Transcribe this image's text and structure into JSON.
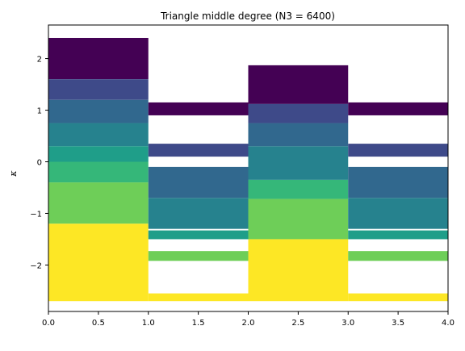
{
  "chart_data": {
    "type": "bar",
    "title": "Triangle middle degree (N3 = 6400)",
    "xlabel": "",
    "ylabel": "κ",
    "xlim": [
      0,
      4
    ],
    "ylim": [
      -2.9,
      2.65
    ],
    "xticks": [
      "0.0",
      "0.5",
      "1.0",
      "1.5",
      "2.0",
      "2.5",
      "3.0",
      "3.5",
      "4.0"
    ],
    "yticks": [
      -2,
      -1,
      0,
      1,
      2
    ],
    "ytick_labels": [
      "−2",
      "−1",
      "0",
      "1",
      "2"
    ],
    "grid": false,
    "colors": {
      "c1": "#440154",
      "c2": "#3e4a89",
      "c3": "#31688e",
      "c4": "#26828e",
      "c5": "#1f9e89",
      "c6": "#35b779",
      "c7": "#6ece58",
      "c8": "#fde725"
    },
    "segments": [
      {
        "x0": 0,
        "x1": 1,
        "y0": 1.6,
        "y1": 2.4,
        "color": "c1"
      },
      {
        "x0": 0,
        "x1": 1,
        "y0": 1.2,
        "y1": 1.6,
        "color": "c2"
      },
      {
        "x0": 0,
        "x1": 1,
        "y0": 0.75,
        "y1": 1.2,
        "color": "c3"
      },
      {
        "x0": 0,
        "x1": 1,
        "y0": 0.3,
        "y1": 0.75,
        "color": "c4"
      },
      {
        "x0": 0,
        "x1": 1,
        "y0": 0.0,
        "y1": 0.3,
        "color": "c5"
      },
      {
        "x0": 0,
        "x1": 1,
        "y0": -0.4,
        "y1": 0.0,
        "color": "c6"
      },
      {
        "x0": 0,
        "x1": 1,
        "y0": -1.2,
        "y1": -0.4,
        "color": "c7"
      },
      {
        "x0": 0,
        "x1": 1,
        "y0": -2.7,
        "y1": -1.2,
        "color": "c8"
      },
      {
        "x0": 1,
        "x1": 2,
        "y0": 0.9,
        "y1": 1.15,
        "color": "c1"
      },
      {
        "x0": 1,
        "x1": 2,
        "y0": 0.1,
        "y1": 0.35,
        "color": "c2"
      },
      {
        "x0": 1,
        "x1": 2,
        "y0": -0.7,
        "y1": -0.1,
        "color": "c3"
      },
      {
        "x0": 1,
        "x1": 2,
        "y0": -1.3,
        "y1": -0.7,
        "color": "c4"
      },
      {
        "x0": 1,
        "x1": 2,
        "y0": -1.5,
        "y1": -1.33,
        "color": "c5"
      },
      {
        "x0": 1,
        "x1": 2,
        "y0": -1.92,
        "y1": -1.73,
        "color": "c7"
      },
      {
        "x0": 1,
        "x1": 2,
        "y0": -2.7,
        "y1": -2.55,
        "color": "c8"
      },
      {
        "x0": 2,
        "x1": 3,
        "y0": 1.12,
        "y1": 1.87,
        "color": "c1"
      },
      {
        "x0": 2,
        "x1": 3,
        "y0": 0.75,
        "y1": 1.12,
        "color": "c2"
      },
      {
        "x0": 2,
        "x1": 3,
        "y0": 0.3,
        "y1": 0.75,
        "color": "c3"
      },
      {
        "x0": 2,
        "x1": 3,
        "y0": -0.35,
        "y1": 0.3,
        "color": "c4"
      },
      {
        "x0": 2,
        "x1": 3,
        "y0": -0.72,
        "y1": -0.35,
        "color": "c6"
      },
      {
        "x0": 2,
        "x1": 3,
        "y0": -1.5,
        "y1": -0.72,
        "color": "c7"
      },
      {
        "x0": 2,
        "x1": 3,
        "y0": -2.7,
        "y1": -1.5,
        "color": "c8"
      },
      {
        "x0": 3,
        "x1": 4,
        "y0": 0.9,
        "y1": 1.15,
        "color": "c1"
      },
      {
        "x0": 3,
        "x1": 4,
        "y0": 0.1,
        "y1": 0.35,
        "color": "c2"
      },
      {
        "x0": 3,
        "x1": 4,
        "y0": -0.7,
        "y1": -0.1,
        "color": "c3"
      },
      {
        "x0": 3,
        "x1": 4,
        "y0": -1.3,
        "y1": -0.7,
        "color": "c4"
      },
      {
        "x0": 3,
        "x1": 4,
        "y0": -1.5,
        "y1": -1.33,
        "color": "c5"
      },
      {
        "x0": 3,
        "x1": 4,
        "y0": -1.92,
        "y1": -1.73,
        "color": "c7"
      },
      {
        "x0": 3,
        "x1": 4,
        "y0": -2.7,
        "y1": -2.55,
        "color": "c8"
      }
    ]
  }
}
